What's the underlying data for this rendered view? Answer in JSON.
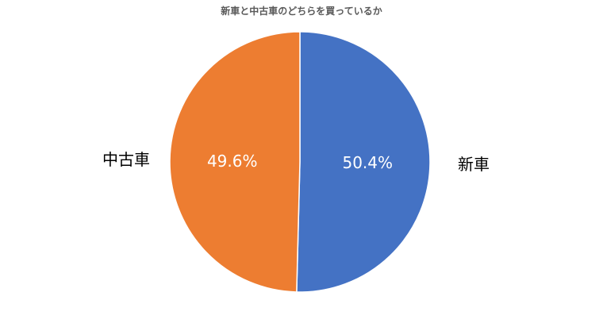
{
  "chart_data": {
    "type": "pie",
    "title": "新車と中古車のどちらを買っているか",
    "slices": [
      {
        "label": "新車",
        "value": 50.4,
        "display": "50.4%",
        "color": "#4472C4"
      },
      {
        "label": "中古車",
        "value": 49.6,
        "display": "49.6%",
        "color": "#ED7D31"
      }
    ],
    "start": "12 o'clock",
    "direction": "clockwise",
    "legend": "none",
    "label_placement": "category names outside, percentages inside"
  }
}
